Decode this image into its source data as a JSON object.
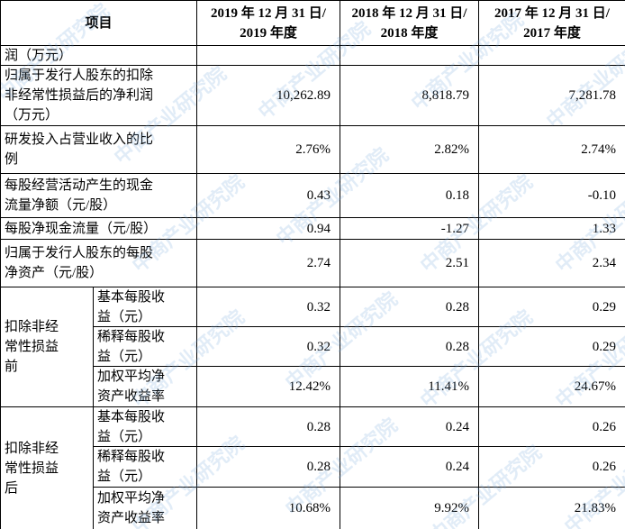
{
  "watermark": "中商产业研究院",
  "header": {
    "item": "项目",
    "columns": [
      [
        "2019 年 12 月 31 日/",
        "2019 年度"
      ],
      [
        "2018 年 12 月 31 日/",
        "2018 年度"
      ],
      [
        "2017 年 12 月 31 日/",
        "2017 年度"
      ]
    ]
  },
  "rows": [
    {
      "label": [
        "润（万元）"
      ]
    },
    {
      "label": [
        "归属于发行人股东的扣除",
        "非经常性损益后的净利润",
        "（万元）"
      ],
      "values": [
        "10,262.89",
        "8,818.79",
        "7,281.78"
      ]
    },
    {
      "label": [
        "研发投入占营业收入的比",
        "例"
      ],
      "values": [
        "2.76%",
        "2.82%",
        "2.74%"
      ]
    },
    {
      "label": [
        "每股经营活动产生的现金",
        "流量净额（元/股）"
      ],
      "values": [
        "0.43",
        "0.18",
        "-0.10"
      ]
    },
    {
      "label": [
        "每股净现金流量（元/股）"
      ],
      "values": [
        "0.94",
        "-1.27",
        "1.33"
      ]
    },
    {
      "label": [
        "归属于发行人股东的每股",
        "净资产（元/股）"
      ],
      "values": [
        "2.74",
        "2.51",
        "2.34"
      ]
    }
  ],
  "groups": [
    {
      "label": [
        "扣除非经",
        "常性损益",
        "前"
      ],
      "rows": [
        {
          "label": [
            "基本每股收",
            "益（元）"
          ],
          "values": [
            "0.32",
            "0.28",
            "0.29"
          ]
        },
        {
          "label": [
            "稀释每股收",
            "益（元）"
          ],
          "values": [
            "0.32",
            "0.28",
            "0.29"
          ]
        },
        {
          "label": [
            "加权平均净",
            "资产收益率"
          ],
          "values": [
            "12.42%",
            "11.41%",
            "24.67%"
          ]
        }
      ]
    },
    {
      "label": [
        "扣除非经",
        "常性损益",
        "后"
      ],
      "rows": [
        {
          "label": [
            "基本每股收",
            "益（元）"
          ],
          "values": [
            "0.28",
            "0.24",
            "0.26"
          ]
        },
        {
          "label": [
            "稀释每股收",
            "益（元）"
          ],
          "values": [
            "0.28",
            "0.24",
            "0.26"
          ]
        },
        {
          "label": [
            "加权平均净",
            "资产收益率"
          ],
          "values": [
            "10.68%",
            "9.92%",
            "21.83%"
          ]
        }
      ]
    }
  ]
}
